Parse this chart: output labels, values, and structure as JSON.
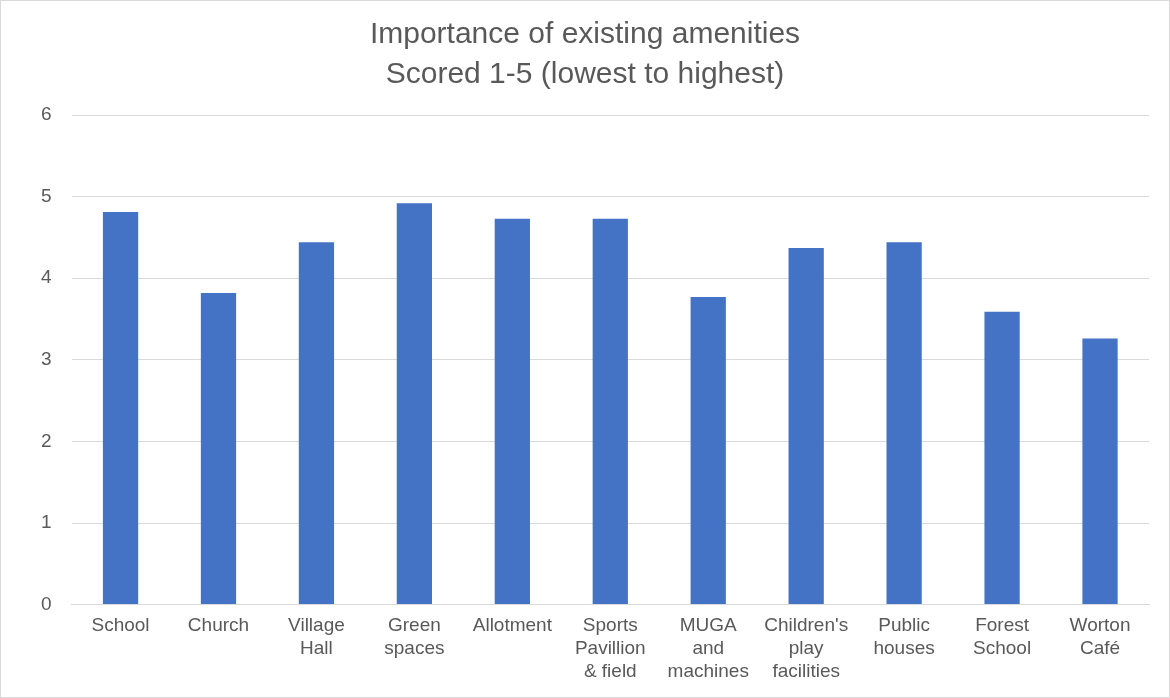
{
  "chart_data": {
    "type": "bar",
    "title": "Importance of existing amenities",
    "subtitle": "Scored 1-5 (lowest to highest)",
    "categories": [
      "School",
      "Church",
      "Village Hall",
      "Green spaces",
      "Allotment",
      "Sports Pavillion & field",
      "MUGA and machines",
      "Children's play facilities",
      "Public houses",
      "Forest School",
      "Worton Café"
    ],
    "values": [
      4.81,
      3.82,
      4.44,
      4.92,
      4.73,
      4.73,
      3.77,
      4.37,
      4.44,
      3.59,
      3.26
    ],
    "color": "#4472c4",
    "ylim": [
      0,
      6
    ],
    "yticks": [
      0,
      1,
      2,
      3,
      4,
      5,
      6
    ],
    "grid": "y",
    "legend": false
  }
}
